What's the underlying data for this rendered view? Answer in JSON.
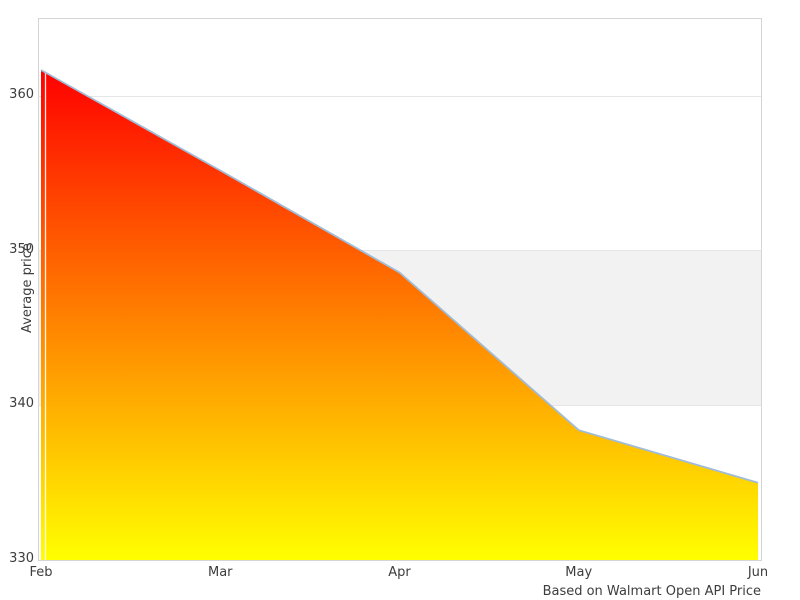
{
  "chart": {
    "ylabel": "Average price",
    "caption": "Based on Walmart Open API Price"
  },
  "chart_data": {
    "type": "area",
    "categories": [
      "Feb",
      "Mar",
      "Apr",
      "May",
      "Jun"
    ],
    "values": [
      361.7,
      355.2,
      348.6,
      338.4,
      335.0
    ],
    "title": "",
    "xlabel": "",
    "ylabel": "Average price",
    "caption": "Based on Walmart Open API Price",
    "ylim": [
      330,
      365
    ],
    "yticks": [
      330,
      340,
      350,
      360
    ],
    "grid": true,
    "legend": "none",
    "highlight_band": {
      "from": 340,
      "to": 350,
      "color": "#f2f2f2"
    },
    "colors": {
      "area_gradient_top": "#ff0000",
      "area_gradient_bottom": "#ffff00",
      "line": "#a0bcd8",
      "gridline": "#e6e6e6",
      "plot_border": "#d5d5d5",
      "text": "#3d3d3d",
      "background": "#ffffff"
    }
  }
}
